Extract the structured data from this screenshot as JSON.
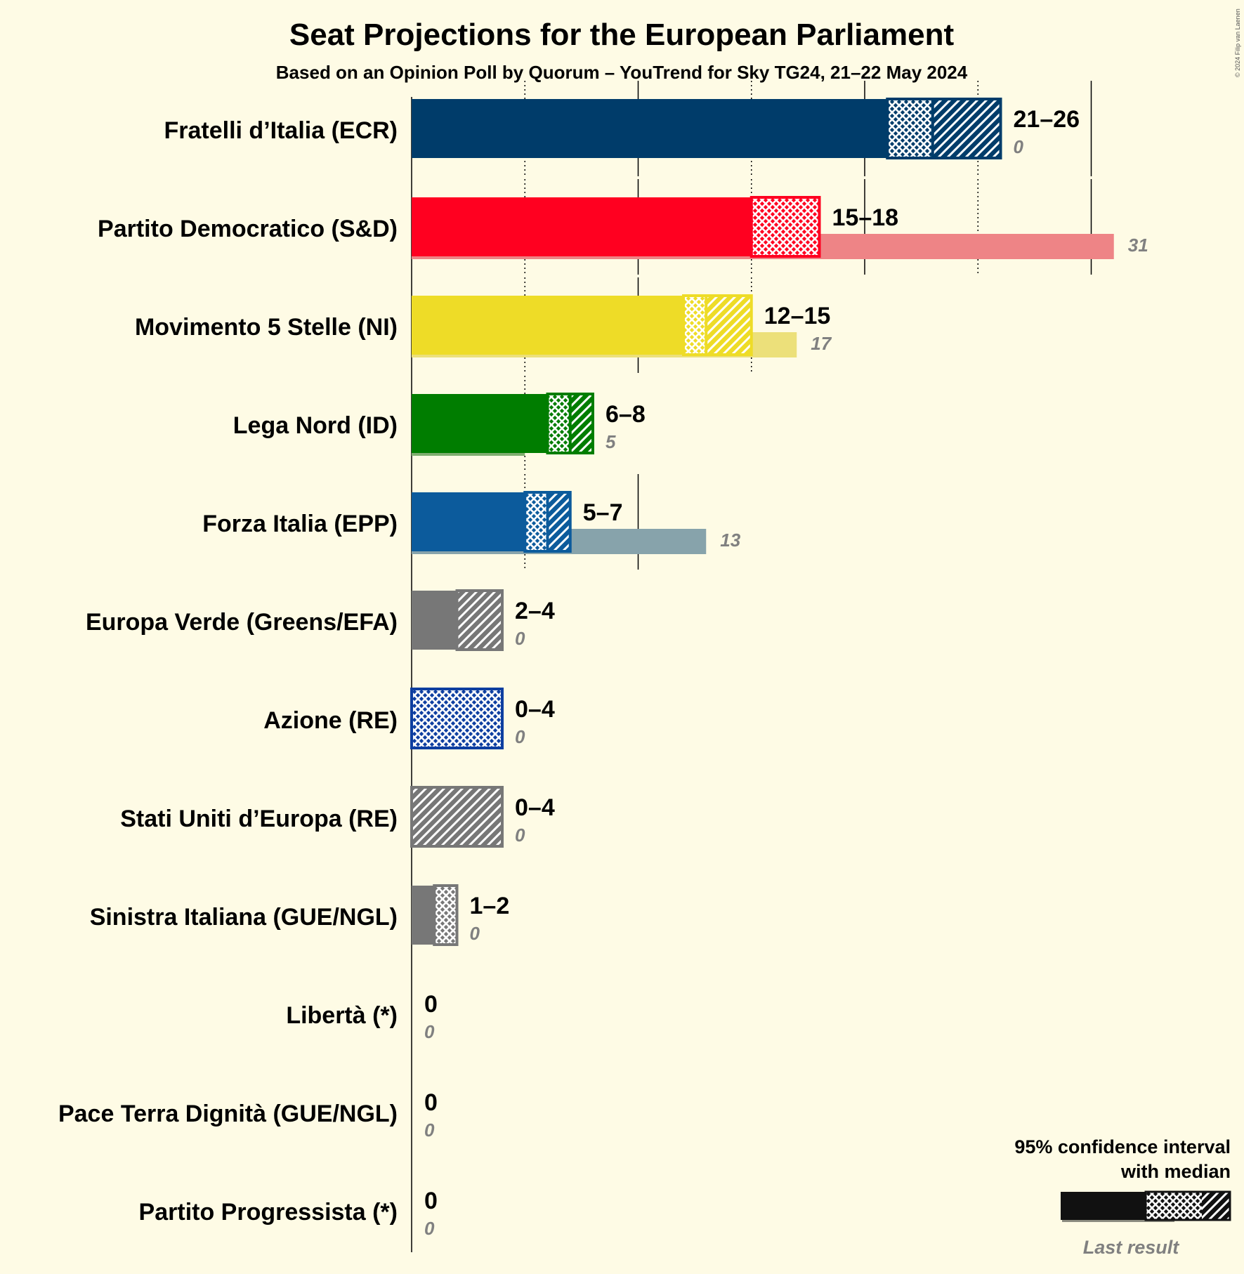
{
  "copyright": "© 2024 Filip van Laenen",
  "chart_data": {
    "type": "bar",
    "title": "Seat Projections for the European Parliament",
    "subtitle": "Based on an Opinion Poll by Quorum – YouTrend for Sky TG24, 21–22 May 2024",
    "x_range": [
      0,
      31
    ],
    "gridlines": {
      "major": [
        10,
        20,
        30
      ],
      "minor": [
        5,
        15,
        25
      ]
    },
    "parties": [
      {
        "name": "Fratelli d’Italia (ECR)",
        "low": 21,
        "median": 23,
        "high": 26,
        "last": 0,
        "range_label": "21–26",
        "last_label": "0",
        "color": "#003c6a",
        "last_color": "#7f9db4"
      },
      {
        "name": "Partito Democratico (S&D)",
        "low": 15,
        "median": 18,
        "high": 18,
        "last": 31,
        "range_label": "15–18",
        "last_label": "31",
        "color": "#ff0020",
        "last_color": "#ee8486"
      },
      {
        "name": "Movimento 5 Stelle (NI)",
        "low": 12,
        "median": 13,
        "high": 15,
        "last": 17,
        "range_label": "12–15",
        "last_label": "17",
        "color": "#eedc27",
        "last_color": "#ece07a"
      },
      {
        "name": "Lega Nord (ID)",
        "low": 6,
        "median": 7,
        "high": 8,
        "last": 5,
        "range_label": "6–8",
        "last_label": "5",
        "color": "#007d00",
        "last_color": "#80ae70"
      },
      {
        "name": "Forza Italia (EPP)",
        "low": 5,
        "median": 6,
        "high": 7,
        "last": 13,
        "range_label": "5–7",
        "last_label": "13",
        "color": "#0c5b9c",
        "last_color": "#87a3ab"
      },
      {
        "name": "Europa Verde (Greens/EFA)",
        "low": 2,
        "median": 2,
        "high": 4,
        "last": 0,
        "range_label": "2–4",
        "last_label": "0",
        "color": "#777777",
        "last_color": "#b0b0b0"
      },
      {
        "name": "Azione (RE)",
        "low": 0,
        "median": 4,
        "high": 4,
        "last": 0,
        "range_label": "0–4",
        "last_label": "0",
        "color": "#0d3ea0",
        "last_color": "#8aa0cc"
      },
      {
        "name": "Stati Uniti d’Europa (RE)",
        "low": 0,
        "median": 0,
        "high": 4,
        "last": 0,
        "range_label": "0–4",
        "last_label": "0",
        "color": "#777777",
        "last_color": "#b0b0b0"
      },
      {
        "name": "Sinistra Italiana (GUE/NGL)",
        "low": 1,
        "median": 2,
        "high": 2,
        "last": 0,
        "range_label": "1–2",
        "last_label": "0",
        "color": "#777777",
        "last_color": "#b0b0b0"
      },
      {
        "name": "Libertà (*)",
        "low": 0,
        "median": 0,
        "high": 0,
        "last": 0,
        "range_label": "0",
        "last_label": "0",
        "color": "#777777",
        "last_color": "#b0b0b0"
      },
      {
        "name": "Pace Terra Dignità (GUE/NGL)",
        "low": 0,
        "median": 0,
        "high": 0,
        "last": 0,
        "range_label": "0",
        "last_label": "0",
        "color": "#777777",
        "last_color": "#b0b0b0"
      },
      {
        "name": "Partito Progressista (*)",
        "low": 0,
        "median": 0,
        "high": 0,
        "last": 0,
        "range_label": "0",
        "last_label": "0",
        "color": "#777777",
        "last_color": "#b0b0b0"
      }
    ],
    "legend": {
      "line1": "95% confidence interval",
      "line2": "with median",
      "last_result": "Last result",
      "placement": "bottom-right"
    }
  }
}
